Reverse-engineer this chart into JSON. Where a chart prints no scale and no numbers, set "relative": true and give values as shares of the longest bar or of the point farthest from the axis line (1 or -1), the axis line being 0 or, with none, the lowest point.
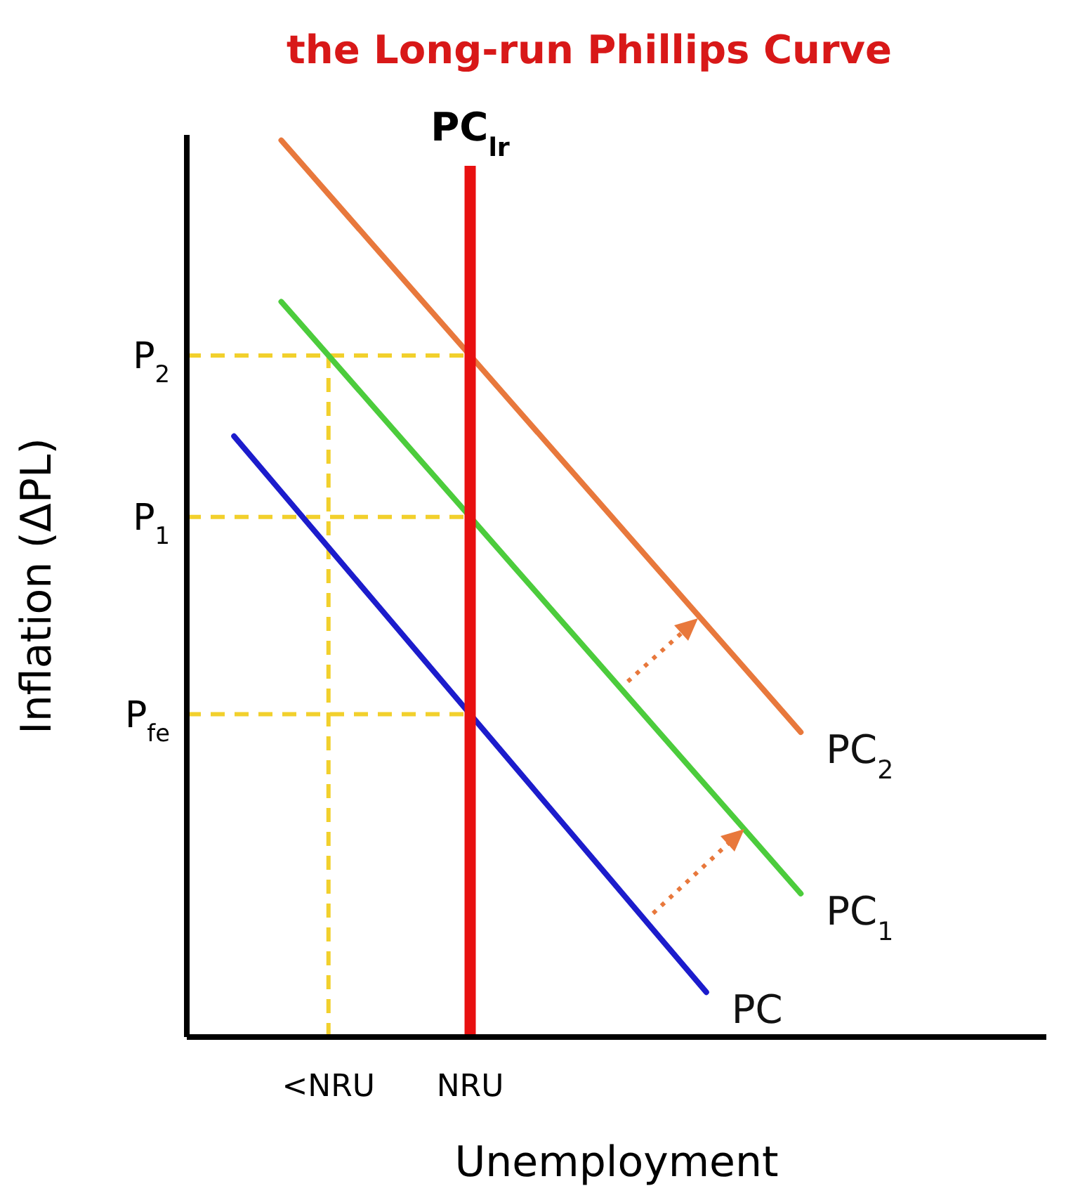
{
  "chart_data": {
    "type": "line",
    "title": "the Long-run Phillips Curve",
    "xlabel": "Unemployment",
    "ylabel": "Inflation (ΔPL)",
    "relative": true,
    "marker": "none",
    "line_style": "solid",
    "categories": [
      null,
      null,
      null,
      "<NRU",
      null,
      null,
      "NRU",
      null,
      null,
      null,
      null,
      null,
      null,
      null,
      null,
      null,
      null,
      null,
      null
    ],
    "series": [
      {
        "name": "PC",
        "color": "#1c1ccc",
        "values": [
          null,
          0.67,
          0.608,
          0.546,
          0.484,
          0.422,
          0.36,
          0.298,
          0.236,
          0.174,
          0.112,
          0.05,
          null,
          null,
          null,
          null,
          null,
          null,
          null
        ]
      },
      {
        "name": "PC$_{1}$",
        "color": "#4ccc3c",
        "values": [
          null,
          null,
          0.82,
          0.76,
          0.7,
          0.64,
          0.58,
          0.52,
          0.46,
          0.4,
          0.34,
          0.28,
          0.22,
          0.16,
          null,
          null,
          null,
          null,
          null
        ]
      },
      {
        "name": "PC$_{2}$",
        "color": "#e8783c",
        "values": [
          null,
          null,
          1,
          0.94,
          0.88,
          0.82,
          0.76,
          0.7,
          0.64,
          0.58,
          0.52,
          0.46,
          0.4,
          0.34,
          null,
          null,
          null,
          null,
          null
        ]
      }
    ],
    "ref_lines": [
      {
        "axis": "x",
        "value": "NRU",
        "label": "PC$_{lr}$",
        "color": "#e81010"
      },
      {
        "axis": "x",
        "value": "<NRU",
        "color": "#f2d02c",
        "line_style": "dashed"
      },
      {
        "axis": "y",
        "value": 0.76,
        "label": "P$_{2}$",
        "color": "#f2d02c",
        "line_style": "dashed"
      },
      {
        "axis": "y",
        "value": 0.58,
        "label": "P$_{1}$",
        "color": "#f2d02c",
        "line_style": "dashed"
      },
      {
        "axis": "y",
        "value": 0.36,
        "label": "P$_{fe}$",
        "color": "#f2d02c",
        "line_style": "dashed"
      }
    ]
  }
}
